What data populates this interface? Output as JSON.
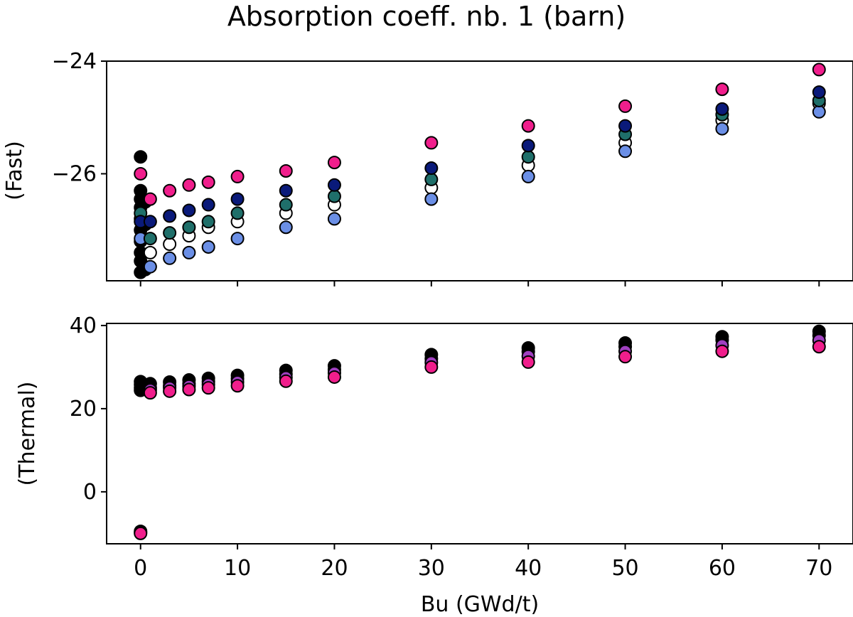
{
  "chart_data": {
    "type": "scatter",
    "title": "Absorption coeff. nb. 1 (barn)",
    "xlabel": "Bu (GWd/t)",
    "x_ticks": [
      0,
      10,
      20,
      30,
      40,
      50,
      60,
      70
    ],
    "xlim": [
      -3.5,
      73.5
    ],
    "colors": {
      "black": "#000000",
      "white": "#ffffff",
      "light_blue": "#6b8fe6",
      "teal": "#1f6f6a",
      "navy": "#0a1a7a",
      "pink": "#f01e8c",
      "violet": "#a040c0"
    },
    "panels": [
      {
        "ylabel": "(Fast)",
        "ylim": [
          -27.9,
          -24.0
        ],
        "y_ticks": [
          -24,
          -26
        ],
        "y_tick_labels": [
          "−24",
          "−26"
        ],
        "series": [
          {
            "color": "black",
            "points": [
              [
                0,
                -25.7
              ],
              [
                0,
                -26.3
              ],
              [
                0,
                -26.45
              ],
              [
                0,
                -26.6
              ],
              [
                0,
                -26.8
              ],
              [
                0,
                -27.0
              ],
              [
                0,
                -27.2
              ],
              [
                0,
                -27.4
              ],
              [
                0,
                -27.55
              ],
              [
                0,
                -27.75
              ],
              [
                0.5,
                -27.7
              ],
              [
                0.5,
                -26.5
              ],
              [
                0.5,
                -26.9
              ]
            ]
          },
          {
            "color": "white",
            "points": [
              [
                1,
                -27.4
              ],
              [
                3,
                -27.25
              ],
              [
                5,
                -27.1
              ],
              [
                7,
                -26.95
              ],
              [
                10,
                -26.85
              ],
              [
                15,
                -26.7
              ],
              [
                20,
                -26.55
              ],
              [
                30,
                -26.25
              ],
              [
                40,
                -25.85
              ],
              [
                50,
                -25.45
              ],
              [
                60,
                -25.05
              ],
              [
                70,
                -24.75
              ]
            ]
          },
          {
            "color": "light_blue",
            "points": [
              [
                0,
                -27.15
              ],
              [
                1,
                -27.65
              ],
              [
                3,
                -27.5
              ],
              [
                5,
                -27.4
              ],
              [
                7,
                -27.3
              ],
              [
                10,
                -27.15
              ],
              [
                15,
                -26.95
              ],
              [
                20,
                -26.8
              ],
              [
                30,
                -26.45
              ],
              [
                40,
                -26.05
              ],
              [
                50,
                -25.6
              ],
              [
                60,
                -25.2
              ],
              [
                70,
                -24.9
              ]
            ]
          },
          {
            "color": "teal",
            "points": [
              [
                0,
                -26.7
              ],
              [
                1,
                -27.15
              ],
              [
                3,
                -27.05
              ],
              [
                5,
                -26.95
              ],
              [
                7,
                -26.85
              ],
              [
                10,
                -26.7
              ],
              [
                15,
                -26.55
              ],
              [
                20,
                -26.4
              ],
              [
                30,
                -26.1
              ],
              [
                40,
                -25.7
              ],
              [
                50,
                -25.3
              ],
              [
                60,
                -24.95
              ],
              [
                70,
                -24.7
              ]
            ]
          },
          {
            "color": "navy",
            "points": [
              [
                0,
                -26.85
              ],
              [
                1,
                -26.85
              ],
              [
                3,
                -26.75
              ],
              [
                5,
                -26.65
              ],
              [
                7,
                -26.55
              ],
              [
                10,
                -26.45
              ],
              [
                15,
                -26.3
              ],
              [
                20,
                -26.2
              ],
              [
                30,
                -25.9
              ],
              [
                40,
                -25.5
              ],
              [
                50,
                -25.15
              ],
              [
                60,
                -24.85
              ],
              [
                70,
                -24.55
              ]
            ]
          },
          {
            "color": "pink",
            "points": [
              [
                0,
                -26.0
              ],
              [
                1,
                -26.45
              ],
              [
                3,
                -26.3
              ],
              [
                5,
                -26.2
              ],
              [
                7,
                -26.15
              ],
              [
                10,
                -26.05
              ],
              [
                15,
                -25.95
              ],
              [
                20,
                -25.8
              ],
              [
                30,
                -25.45
              ],
              [
                40,
                -25.15
              ],
              [
                50,
                -24.8
              ],
              [
                60,
                -24.5
              ],
              [
                70,
                -24.15
              ]
            ]
          }
        ]
      },
      {
        "ylabel": "(Thermal)",
        "ylim": [
          -12.5,
          40.5
        ],
        "y_ticks": [
          40,
          20,
          0
        ],
        "y_tick_labels": [
          "40",
          "20",
          "0"
        ],
        "series": [
          {
            "color": "black",
            "points": [
              [
                0,
                26.5
              ],
              [
                0,
                25.8
              ],
              [
                0,
                25.0
              ],
              [
                0,
                24.4
              ],
              [
                0,
                -9.5
              ],
              [
                0.5,
                25.5
              ],
              [
                1,
                26.0
              ],
              [
                3,
                26.4
              ],
              [
                5,
                26.9
              ],
              [
                7,
                27.3
              ],
              [
                10,
                28.0
              ],
              [
                15,
                29.2
              ],
              [
                20,
                30.3
              ],
              [
                30,
                33.0
              ],
              [
                40,
                34.6
              ],
              [
                50,
                35.8
              ],
              [
                60,
                37.3
              ],
              [
                70,
                38.6
              ]
            ]
          },
          {
            "color": "black",
            "points": [
              [
                1,
                25.0
              ],
              [
                3,
                25.5
              ],
              [
                5,
                26.0
              ],
              [
                7,
                26.5
              ],
              [
                10,
                27.2
              ],
              [
                15,
                28.3
              ],
              [
                20,
                29.4
              ],
              [
                30,
                32.0
              ],
              [
                40,
                33.7
              ],
              [
                50,
                34.9
              ],
              [
                60,
                36.5
              ],
              [
                70,
                37.6
              ]
            ]
          },
          {
            "color": "violet",
            "points": [
              [
                0,
                -9.8
              ],
              [
                1,
                24.5
              ],
              [
                3,
                25.0
              ],
              [
                5,
                25.4
              ],
              [
                7,
                25.8
              ],
              [
                10,
                26.4
              ],
              [
                15,
                27.5
              ],
              [
                20,
                28.6
              ],
              [
                30,
                31.1
              ],
              [
                40,
                32.6
              ],
              [
                50,
                33.8
              ],
              [
                60,
                35.2
              ],
              [
                70,
                36.4
              ]
            ]
          },
          {
            "color": "pink",
            "points": [
              [
                0,
                -10.0
              ],
              [
                1,
                23.8
              ],
              [
                3,
                24.2
              ],
              [
                5,
                24.6
              ],
              [
                7,
                25.0
              ],
              [
                10,
                25.5
              ],
              [
                15,
                26.6
              ],
              [
                20,
                27.6
              ],
              [
                30,
                30.0
              ],
              [
                40,
                31.2
              ],
              [
                50,
                32.5
              ],
              [
                60,
                33.8
              ],
              [
                70,
                34.9
              ]
            ]
          }
        ]
      }
    ]
  }
}
